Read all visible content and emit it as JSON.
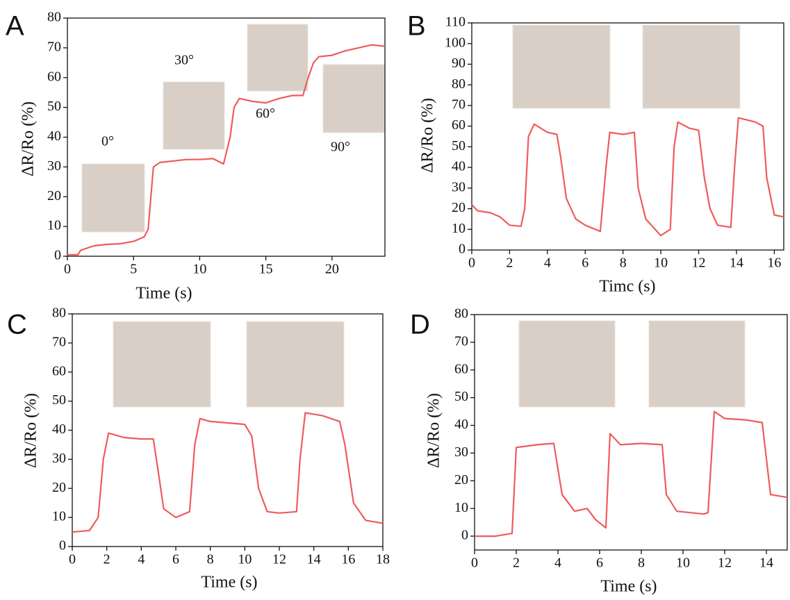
{
  "chart_data": [
    {
      "type": "line",
      "panel": "A",
      "xlabel": "Time (s)",
      "ylabel": "ΔR/Ro (%)",
      "xlim": [
        0,
        24
      ],
      "ylim": [
        0,
        80
      ],
      "xticks": [
        0,
        5,
        10,
        15,
        20
      ],
      "yticks": [
        0,
        10,
        20,
        30,
        40,
        50,
        60,
        70,
        80
      ],
      "grid": false,
      "annotations": [
        "0°",
        "30°",
        "60°",
        "90°"
      ],
      "series": [
        {
          "color": "#ef5b5b",
          "x": [
            0,
            0.8,
            1,
            2,
            3,
            4,
            5,
            5.8,
            6.1,
            6.5,
            7,
            8,
            9,
            10,
            11,
            11.8,
            12.3,
            12.6,
            13,
            14,
            15,
            16,
            17,
            17.8,
            18.2,
            18.6,
            19,
            20,
            21,
            22,
            23,
            24
          ],
          "values": [
            0.5,
            0.5,
            2,
            3.5,
            4,
            4.2,
            5,
            6.5,
            9,
            30,
            31.5,
            32,
            32.5,
            32.5,
            32.8,
            31,
            40,
            50,
            53,
            52,
            51.5,
            53,
            54,
            54,
            60,
            65,
            67,
            67.5,
            69,
            70,
            71,
            70.5
          ]
        }
      ]
    },
    {
      "type": "line",
      "panel": "B",
      "xlabel": "Timc (s)",
      "ylabel": "ΔR/Ro (%)",
      "xlim": [
        0,
        16.5
      ],
      "ylim": [
        0,
        110
      ],
      "xticks": [
        0,
        2,
        4,
        6,
        8,
        10,
        12,
        14,
        16
      ],
      "yticks": [
        0,
        10,
        20,
        30,
        40,
        50,
        60,
        70,
        80,
        90,
        100,
        110
      ],
      "grid": false,
      "series": [
        {
          "color": "#ef5b5b",
          "x": [
            0,
            0.3,
            1,
            1.5,
            2,
            2.6,
            2.8,
            3,
            3.3,
            4,
            4.5,
            4.7,
            5,
            5.5,
            6,
            6.8,
            7.1,
            7.3,
            8,
            8.6,
            8.8,
            9.2,
            10,
            10.5,
            10.7,
            10.9,
            11.5,
            12,
            12.3,
            12.6,
            13,
            13.7,
            13.9,
            14.1,
            15,
            15.4,
            15.6,
            16,
            16.5
          ],
          "values": [
            22,
            19,
            18,
            16,
            12,
            11.5,
            20,
            55,
            61,
            57,
            56,
            45,
            25,
            15,
            12,
            9,
            40,
            57,
            56,
            57,
            30,
            15,
            7,
            10,
            50,
            62,
            59,
            58,
            35,
            20,
            12,
            11,
            40,
            64,
            62,
            60,
            35,
            17,
            16
          ]
        }
      ]
    },
    {
      "type": "line",
      "panel": "C",
      "xlabel": "Time (s)",
      "ylabel": "ΔR/Ro (%)",
      "xlim": [
        0,
        18
      ],
      "ylim": [
        0,
        80
      ],
      "xticks": [
        0,
        2,
        4,
        6,
        8,
        10,
        12,
        14,
        16,
        18
      ],
      "yticks": [
        0,
        10,
        20,
        30,
        40,
        50,
        60,
        70,
        80
      ],
      "grid": false,
      "series": [
        {
          "color": "#ef5b5b",
          "x": [
            0,
            1,
            1.5,
            1.8,
            2.1,
            3,
            4,
            4.7,
            5,
            5.3,
            6,
            6.8,
            7.1,
            7.4,
            8,
            9,
            10,
            10.4,
            10.8,
            11.3,
            12,
            13,
            13.2,
            13.5,
            14.5,
            15.5,
            15.8,
            16.3,
            17,
            18
          ],
          "values": [
            5,
            5.5,
            10,
            30,
            39,
            37.5,
            37,
            37,
            25,
            13,
            10,
            12,
            35,
            44,
            43,
            42.5,
            42,
            38,
            20,
            12,
            11.5,
            12,
            30,
            46,
            45,
            43,
            35,
            15,
            9,
            8
          ]
        }
      ]
    },
    {
      "type": "line",
      "panel": "D",
      "xlabel": "Time (s)",
      "ylabel": "ΔR/Ro (%)",
      "xlim": [
        0,
        15
      ],
      "ylim": [
        -5,
        80
      ],
      "xticks": [
        0,
        2,
        4,
        6,
        8,
        10,
        12,
        14
      ],
      "yticks": [
        0,
        10,
        20,
        30,
        40,
        50,
        60,
        70,
        80
      ],
      "grid": false,
      "series": [
        {
          "color": "#ef5b5b",
          "x": [
            0,
            1,
            1.8,
            2,
            3,
            3.8,
            4.2,
            4.8,
            5.4,
            5.8,
            6.3,
            6.5,
            7,
            8,
            9,
            9.2,
            9.7,
            11,
            11.2,
            11.5,
            12,
            13,
            13.8,
            14.2,
            15
          ],
          "values": [
            0,
            0,
            1,
            32,
            33,
            33.5,
            15,
            9,
            10,
            6,
            3,
            37,
            33,
            33.5,
            33,
            15,
            9,
            8,
            8.5,
            45,
            42.5,
            42,
            41,
            15,
            14
          ]
        }
      ]
    }
  ]
}
